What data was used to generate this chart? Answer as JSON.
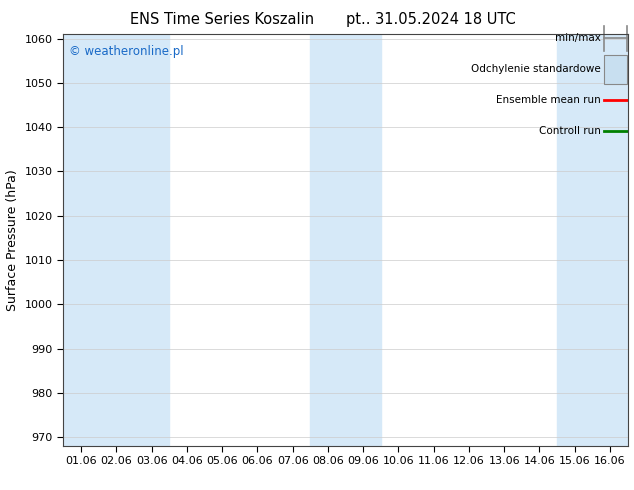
{
  "title_left": "ENS Time Series Koszalin",
  "title_right": "pt.. 31.05.2024 18 UTC",
  "ylabel": "Surface Pressure (hPa)",
  "ylim": [
    968,
    1061
  ],
  "yticks": [
    970,
    980,
    990,
    1000,
    1010,
    1020,
    1030,
    1040,
    1050,
    1060
  ],
  "x_labels": [
    "01.06",
    "02.06",
    "03.06",
    "04.06",
    "05.06",
    "06.06",
    "07.06",
    "08.06",
    "09.06",
    "10.06",
    "11.06",
    "12.06",
    "13.06",
    "14.06",
    "15.06",
    "16.06"
  ],
  "shaded_columns": [
    0,
    1,
    2,
    7,
    8,
    14,
    15
  ],
  "shade_color": "#d6e9f8",
  "background_color": "#ffffff",
  "plot_bg_color": "#ffffff",
  "copyright_text": "© weatheronline.pl",
  "copyright_color": "#1a6ac7",
  "legend_items": [
    {
      "label": "min/max",
      "color": "#aaaaaa",
      "type": "errorbar"
    },
    {
      "label": "Odchylenie standardowe",
      "color": "#c8dff0",
      "type": "box"
    },
    {
      "label": "Ensemble mean run",
      "color": "#ff0000",
      "type": "line"
    },
    {
      "label": "Controll run",
      "color": "#008000",
      "type": "line"
    }
  ],
  "title_fontsize": 10.5,
  "tick_fontsize": 8,
  "ylabel_fontsize": 9,
  "legend_fontsize": 7.5
}
